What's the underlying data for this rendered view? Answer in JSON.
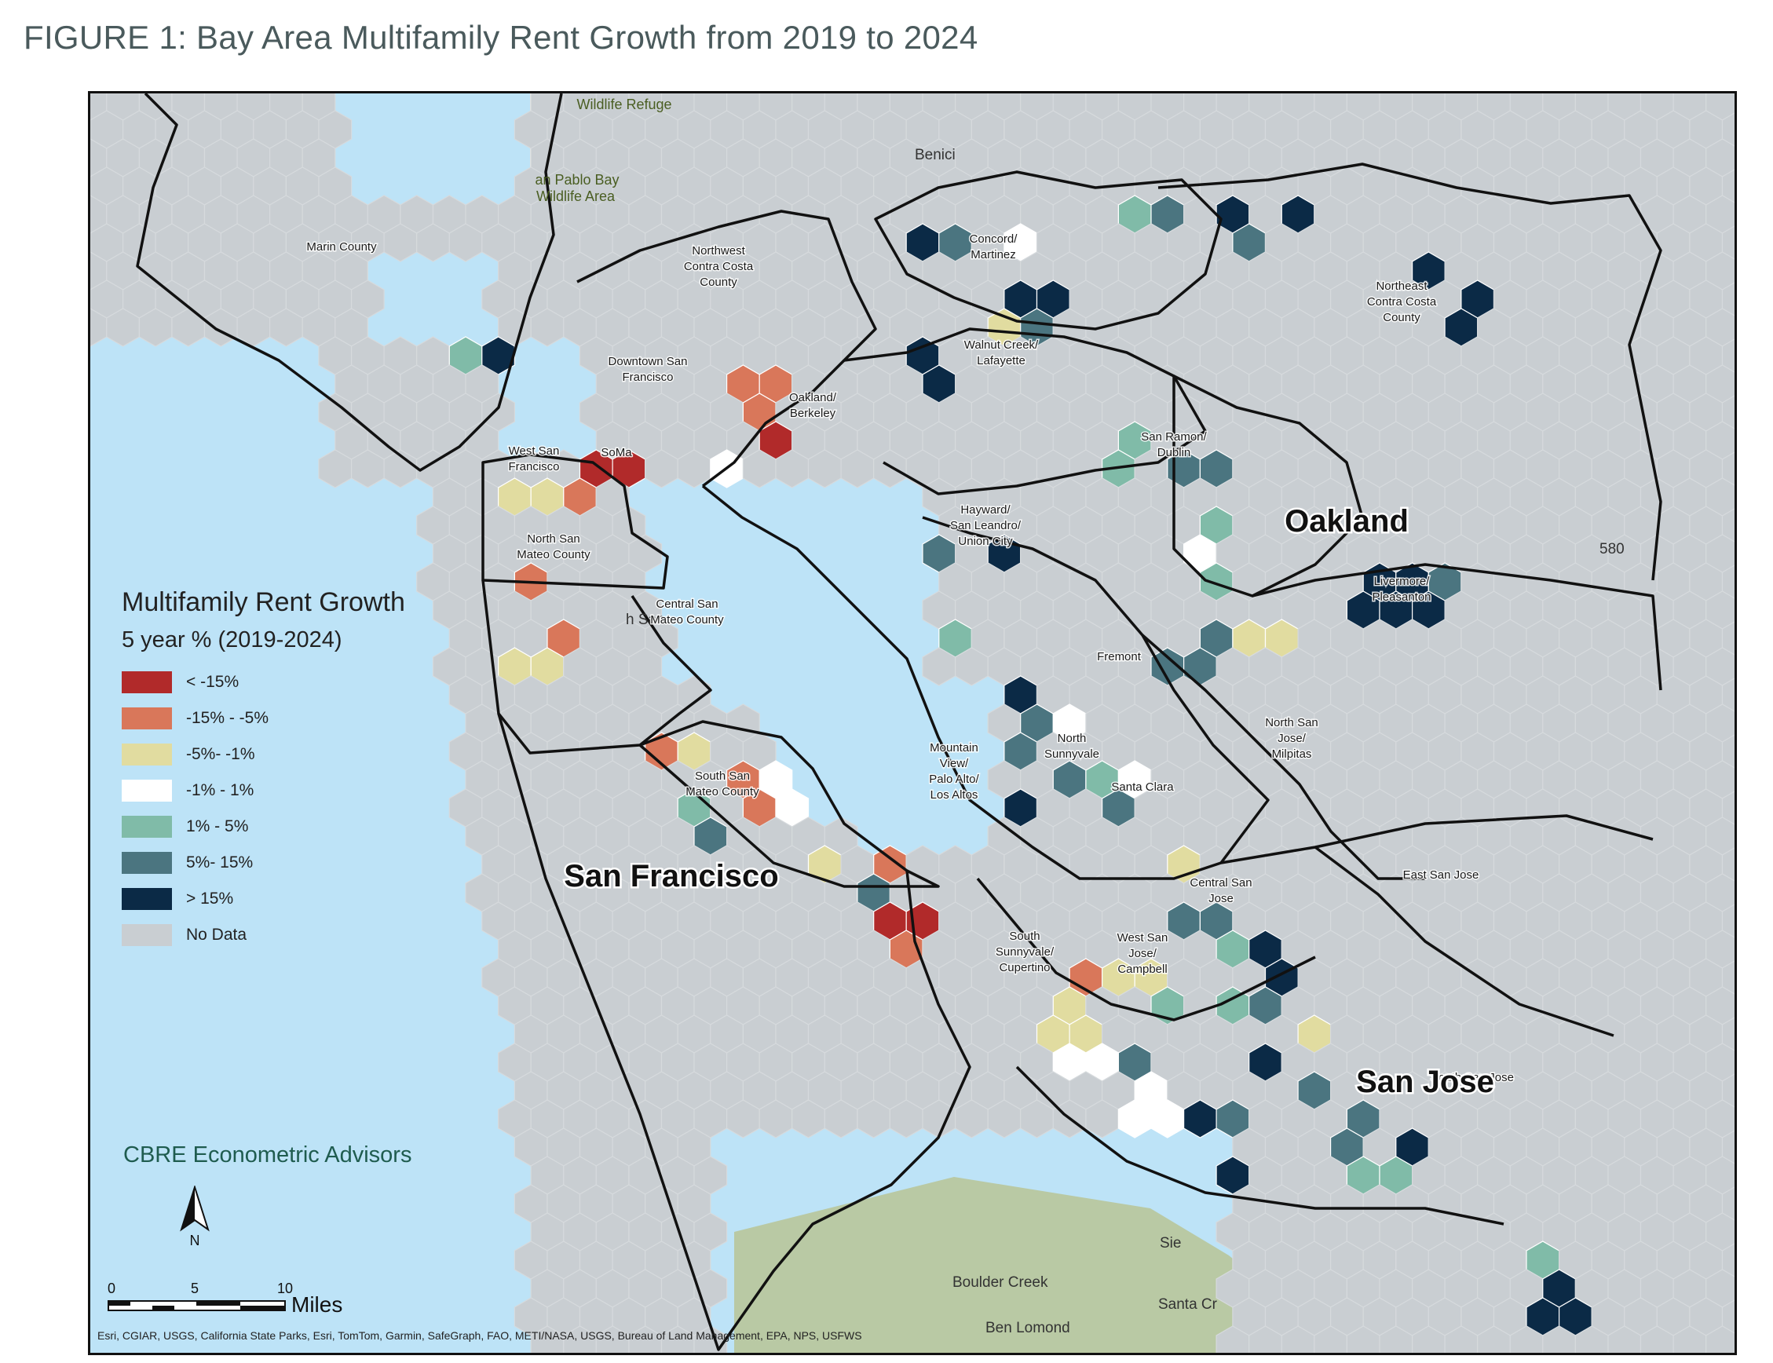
{
  "title": "FIGURE 1: Bay Area Multifamily Rent Growth from 2019 to 2024",
  "legend": {
    "title": "Multifamily Rent Growth",
    "subtitle": "5 year % (2019-2024)",
    "classes": [
      {
        "key": "lt_-15",
        "label": "< -15%",
        "color": "#b12a2a"
      },
      {
        "key": "-15_-5",
        "label": "-15% - -5%",
        "color": "#d9775a"
      },
      {
        "key": "-5_-1",
        "label": "-5%- -1%",
        "color": "#e1dca0"
      },
      {
        "key": "-1_1",
        "label": "-1% - 1%",
        "color": "#ffffff"
      },
      {
        "key": "1_5",
        "label": "1% - 5%",
        "color": "#80bba8"
      },
      {
        "key": "5_15",
        "label": "5%- 15%",
        "color": "#4b7580"
      },
      {
        "key": "gt_15",
        "label": "> 15%",
        "color": "#0b2a46"
      },
      {
        "key": "no_data",
        "label": "No Data",
        "color": "#c9ced2"
      }
    ]
  },
  "colors": {
    "water": "#bde3f7",
    "land": "#e8e8e6",
    "hills": "#b9c9a4",
    "boundary": "#111111",
    "hex_no_data": "#c9ced2"
  },
  "markets": [
    {
      "label": "Marin County"
    },
    {
      "label": "Northwest Contra Costa County"
    },
    {
      "label": "Concord/ Martinez"
    },
    {
      "label": "Northeast Contra Costa County"
    },
    {
      "label": "Walnut Creek/ Lafayette"
    },
    {
      "label": "Downtown San Francisco"
    },
    {
      "label": "Oakland/ Berkeley"
    },
    {
      "label": "San Ramon/ Dublin"
    },
    {
      "label": "West San Francisco"
    },
    {
      "label": "SoMa"
    },
    {
      "label": "Hayward/ San Leandro/ Union City"
    },
    {
      "label": "North San Mateo County"
    },
    {
      "label": "Livermore/ Pleasanton"
    },
    {
      "label": "Central San Mateo County"
    },
    {
      "label": "Fremont"
    },
    {
      "label": "North San Jose/ Milpitas"
    },
    {
      "label": "Mountain View/ Palo Alto/ Los Altos"
    },
    {
      "label": "North Sunnyvale"
    },
    {
      "label": "Santa Clara"
    },
    {
      "label": "South San Mateo County"
    },
    {
      "label": "East San Jose"
    },
    {
      "label": "Central San Jose"
    },
    {
      "label": "South Sunnyvale/ Cupertino"
    },
    {
      "label": "West San Jose/ Campbell"
    },
    {
      "label": "South San Jose"
    }
  ],
  "metros": [
    {
      "label": "Oakland"
    },
    {
      "label": "San Francisco"
    },
    {
      "label": "San Jose"
    }
  ],
  "basemap_labels": {
    "wildlife_refuge": "Wildlife Refuge",
    "benicia": "Benici",
    "san_pablo_bay": "an Pablo Bay",
    "wildlife_area": "Wildlife Area",
    "partial_san": "h San",
    "boulder_creek": "Boulder Creek",
    "ben_lomond": "Ben Lomond",
    "sie": "Sie",
    "santa_cruz": "Santa Cr",
    "interstate": "580"
  },
  "scale": {
    "ticks": [
      "0",
      "5",
      "10"
    ],
    "unit": "Miles"
  },
  "north_label": "N",
  "brand": "CBRE Econometric Advisors",
  "attribution": "Esri, CGIAR, USGS, California State Parks, Esri, TomTom, Garmin, SafeGraph, FAO, METI/NASA, USGS, Bureau of Land Management, EPA, NPS, USFWS"
}
